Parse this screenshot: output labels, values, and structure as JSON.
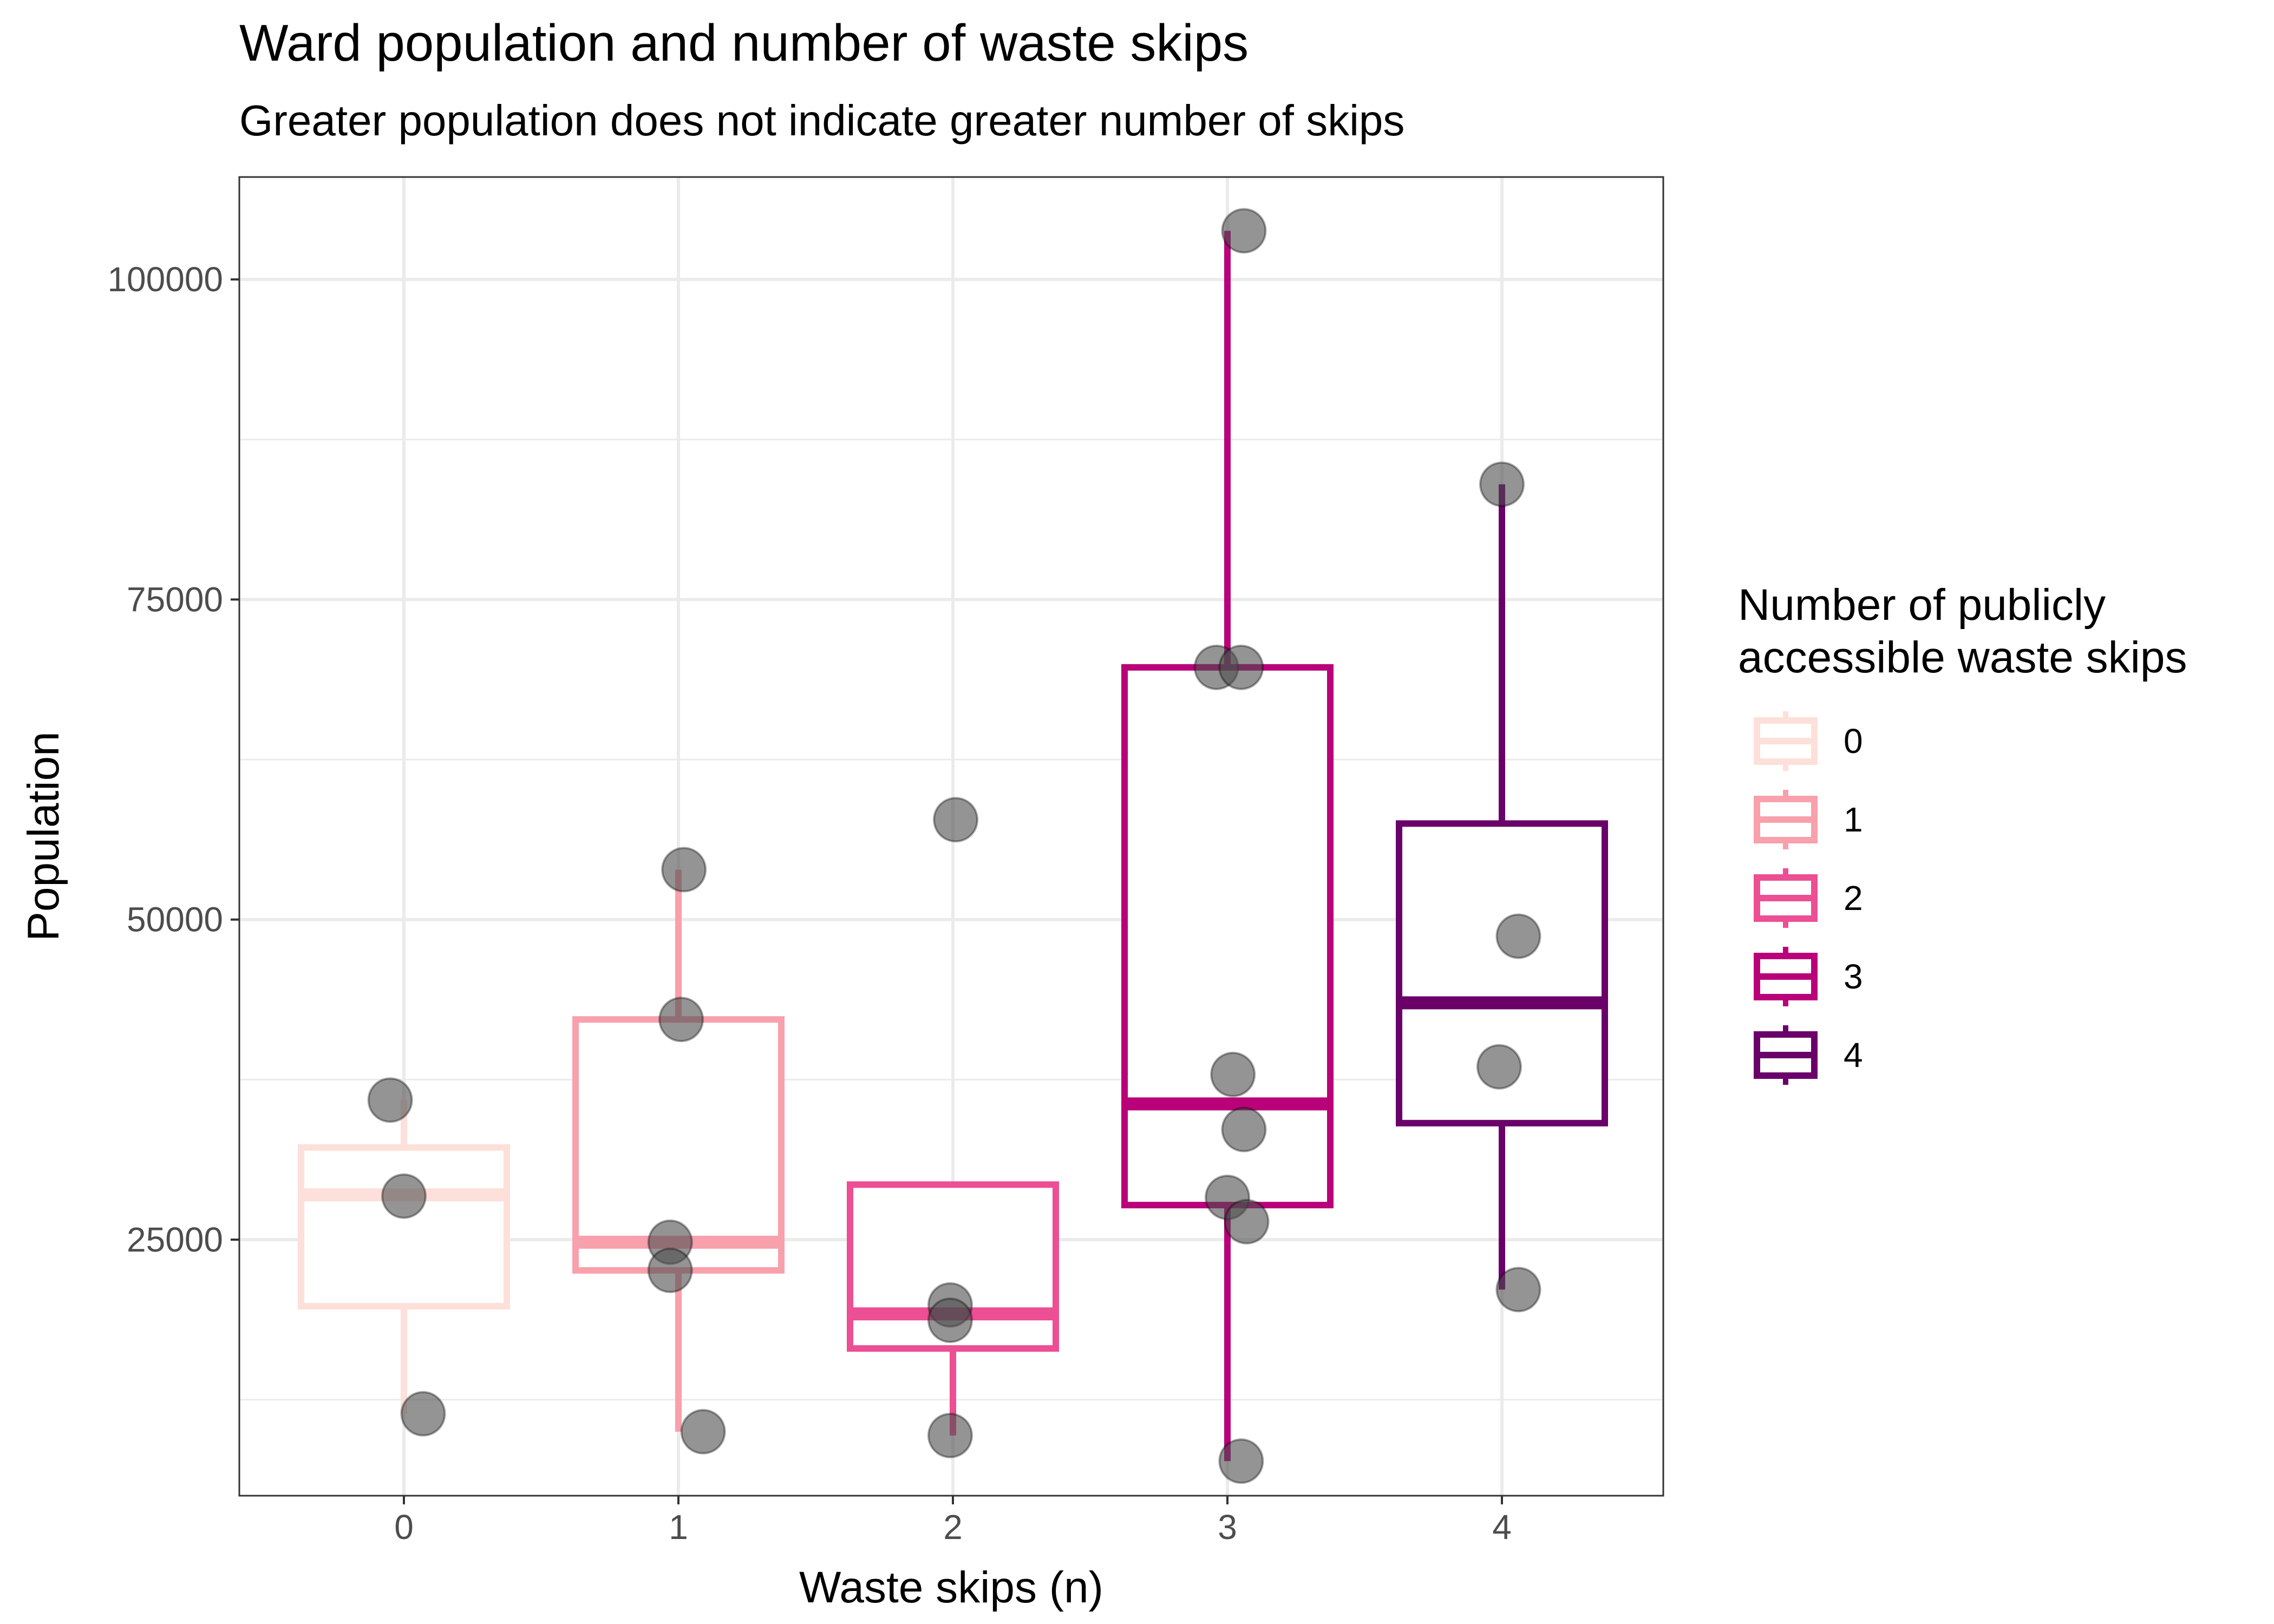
{
  "chart_data": {
    "type": "box",
    "title": "Ward population and number of waste skips",
    "subtitle": "Greater population does not indicate greater number of skips",
    "xlabel": "Waste skips (n)",
    "ylabel": "Population",
    "categories": [
      "0",
      "1",
      "2",
      "3",
      "4"
    ],
    "y_ticks": [
      25000,
      50000,
      75000,
      100000
    ],
    "y_tick_labels": [
      "25000",
      "50000",
      "75000",
      "100000"
    ],
    "ylim": [
      5000,
      108000
    ],
    "grid": true,
    "legend": {
      "title_line1": "Number of publicly",
      "title_line2": "accessible waste skips",
      "position": "right",
      "entries": [
        "0",
        "1",
        "2",
        "3",
        "4"
      ]
    },
    "colors": [
      "#fde0d9",
      "#f8a0ac",
      "#ec4f93",
      "#b9027a",
      "#6a0169"
    ],
    "point_color": "#4d4d4d",
    "boxes": [
      {
        "category": "0",
        "whisker_low": 11400,
        "q1": 19800,
        "median": 28500,
        "q3": 32200,
        "whisker_high": 35900
      },
      {
        "category": "1",
        "whisker_low": 10000,
        "q1": 22600,
        "median": 24800,
        "q3": 42200,
        "whisker_high": 53900
      },
      {
        "category": "2",
        "whisker_low": 9700,
        "q1": 16500,
        "median": 19200,
        "q3": 29300,
        "whisker_high": 29300
      },
      {
        "category": "3",
        "whisker_low": 7700,
        "q1": 27700,
        "median": 35600,
        "q3": 69700,
        "whisker_high": 103800
      },
      {
        "category": "4",
        "whisker_low": 21100,
        "q1": 34100,
        "median": 43500,
        "q3": 57500,
        "whisker_high": 84000
      }
    ],
    "points": [
      {
        "x": 0,
        "y": 35900
      },
      {
        "x": 0,
        "y": 28400
      },
      {
        "x": 0,
        "y": 11400
      },
      {
        "x": 1,
        "y": 53900
      },
      {
        "x": 1,
        "y": 42200
      },
      {
        "x": 1,
        "y": 24800
      },
      {
        "x": 1,
        "y": 22600
      },
      {
        "x": 1,
        "y": 10000
      },
      {
        "x": 2,
        "y": 57800
      },
      {
        "x": 2,
        "y": 19900
      },
      {
        "x": 2,
        "y": 18700
      },
      {
        "x": 2,
        "y": 9700
      },
      {
        "x": 3,
        "y": 103800
      },
      {
        "x": 3,
        "y": 69700
      },
      {
        "x": 3,
        "y": 69700
      },
      {
        "x": 3,
        "y": 37900
      },
      {
        "x": 3,
        "y": 33600
      },
      {
        "x": 3,
        "y": 28300
      },
      {
        "x": 3,
        "y": 26400
      },
      {
        "x": 3,
        "y": 7700
      },
      {
        "x": 4,
        "y": 84000
      },
      {
        "x": 4,
        "y": 48700
      },
      {
        "x": 4,
        "y": 38500
      },
      {
        "x": 4,
        "y": 21100
      }
    ]
  }
}
